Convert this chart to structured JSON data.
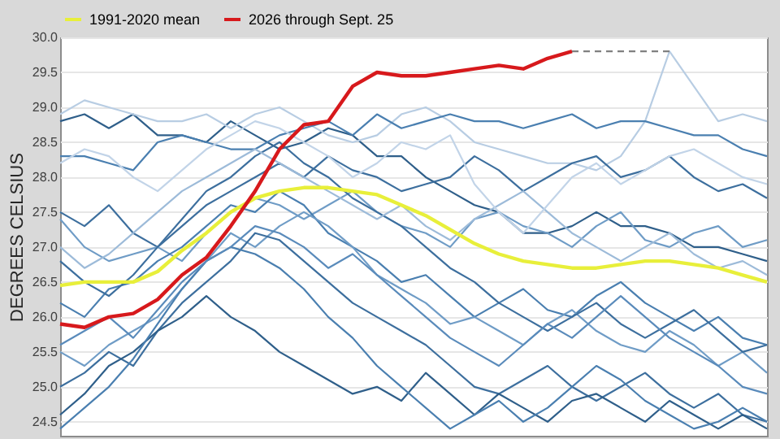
{
  "chart_data": {
    "type": "line",
    "ylabel": "DEGREES CELSIUS",
    "categories": [
      null,
      null,
      null,
      null,
      null,
      null,
      null,
      null,
      null,
      null,
      null,
      null,
      null,
      null,
      null,
      null,
      null,
      null,
      null,
      null,
      null,
      null,
      null,
      null,
      null,
      null,
      null,
      null,
      null,
      null
    ],
    "ylim": [
      24.3,
      30.0
    ],
    "yticks": [
      24.5,
      {
        "value": 25,
        "label": "25.0"
      },
      25.5,
      {
        "value": 26,
        "label": "26.0"
      },
      26.5,
      {
        "value": 27,
        "label": "27.0"
      },
      27.5,
      {
        "value": 28,
        "label": "28.0"
      },
      28.5,
      {
        "value": 29,
        "label": "29.0"
      },
      29.5,
      {
        "value": 30,
        "label": "30.0"
      }
    ],
    "grid": "y",
    "legend": "top",
    "tick_labels": "y",
    "line_style": "solid",
    "marker": "none",
    "series": [
      {
        "color": "#2f5f8a",
        "values": [
          28.8,
          28.9,
          28.7,
          28.9,
          28.6,
          28.6,
          28.5,
          28.8,
          28.6,
          28.4,
          28.5,
          28.7,
          28.6,
          28.3,
          28.3,
          28.0,
          27.8,
          27.6,
          27.5,
          27.2,
          27.2,
          27.3,
          27.5,
          27.3,
          27.3,
          27.2,
          27.0,
          27.0,
          26.9,
          26.8
        ]
      },
      {
        "color": "#b8cde3",
        "values": [
          28.9,
          29.1,
          29.0,
          28.9,
          28.8,
          28.8,
          28.9,
          28.7,
          28.9,
          29.0,
          28.8,
          28.6,
          28.5,
          28.6,
          28.9,
          29.0,
          28.8,
          28.5,
          28.4,
          28.3,
          28.2,
          28.2,
          28.1,
          28.3,
          28.8,
          29.8,
          29.3,
          28.8,
          28.9,
          28.8
        ]
      },
      {
        "color": "#4a7fb0",
        "values": [
          28.3,
          28.3,
          28.2,
          28.1,
          28.5,
          28.6,
          28.5,
          28.4,
          28.4,
          28.6,
          28.7,
          28.8,
          28.6,
          28.9,
          28.7,
          28.8,
          28.9,
          28.8,
          28.8,
          28.7,
          28.8,
          28.9,
          28.7,
          28.8,
          28.8,
          28.7,
          28.6,
          28.6,
          28.4,
          28.3
        ]
      },
      {
        "color": "#3d6f9e",
        "values": [
          27.5,
          27.3,
          27.6,
          27.2,
          27.0,
          27.3,
          27.6,
          27.8,
          28.0,
          28.2,
          28.0,
          28.3,
          28.1,
          28.0,
          27.8,
          27.9,
          28.0,
          28.3,
          28.1,
          27.8,
          28.0,
          28.2,
          28.3,
          28.0,
          28.1,
          28.3,
          28.0,
          27.8,
          27.9,
          27.7
        ]
      },
      {
        "color": "#6f9cc6",
        "values": [
          27.4,
          27.0,
          26.8,
          26.9,
          27.0,
          26.8,
          27.2,
          27.5,
          27.7,
          27.6,
          27.4,
          27.6,
          27.8,
          27.5,
          27.3,
          27.2,
          27.0,
          27.4,
          27.5,
          27.3,
          27.2,
          27.0,
          27.3,
          27.5,
          27.1,
          27.0,
          27.2,
          27.3,
          27.0,
          27.1
        ]
      },
      {
        "color": "#4a7fb0",
        "values": [
          26.2,
          26.0,
          26.4,
          26.5,
          26.8,
          27.0,
          27.3,
          27.6,
          27.5,
          27.8,
          27.6,
          27.2,
          27.0,
          26.8,
          26.5,
          26.6,
          26.3,
          26.0,
          26.2,
          26.4,
          26.1,
          26.0,
          26.3,
          26.5,
          26.2,
          26.0,
          25.8,
          26.0,
          25.7,
          25.6
        ]
      },
      {
        "color": "#6f9cc6",
        "values": [
          25.5,
          25.3,
          25.6,
          25.8,
          26.0,
          26.4,
          26.8,
          27.2,
          27.0,
          27.3,
          27.5,
          27.3,
          27.0,
          26.6,
          26.4,
          26.2,
          25.9,
          26.0,
          25.8,
          25.6,
          25.9,
          26.1,
          25.8,
          25.6,
          25.5,
          25.8,
          25.6,
          25.3,
          25.5,
          25.2
        ]
      },
      {
        "color": "#3d6f9e",
        "values": [
          25.0,
          25.2,
          25.5,
          25.3,
          25.8,
          26.2,
          26.5,
          26.8,
          27.2,
          27.1,
          26.8,
          26.5,
          26.2,
          26.0,
          25.8,
          25.6,
          25.3,
          25.0,
          24.9,
          25.1,
          25.3,
          25.0,
          24.8,
          25.0,
          25.2,
          24.9,
          24.7,
          24.9,
          24.6,
          24.5
        ]
      },
      {
        "color": "#2f5f8a",
        "values": [
          24.6,
          24.9,
          25.3,
          25.5,
          25.8,
          26.0,
          26.3,
          26.0,
          25.8,
          25.5,
          25.3,
          25.1,
          24.9,
          25.0,
          24.8,
          25.2,
          24.9,
          24.6,
          24.9,
          24.7,
          24.5,
          24.8,
          24.9,
          24.7,
          24.5,
          24.8,
          24.6,
          24.4,
          24.6,
          24.4
        ]
      },
      {
        "color": "#4a7fb0",
        "values": [
          24.4,
          24.7,
          25.0,
          25.4,
          25.9,
          26.4,
          26.8,
          27.0,
          26.9,
          26.7,
          26.4,
          26.0,
          25.7,
          25.3,
          25.0,
          24.7,
          24.4,
          24.6,
          24.8,
          24.5,
          24.7,
          25.0,
          25.3,
          25.1,
          24.8,
          24.6,
          24.4,
          24.5,
          24.7,
          24.5
        ]
      },
      {
        "color": "#3d6f9e",
        "values": [
          26.8,
          26.5,
          26.3,
          26.6,
          27.0,
          27.4,
          27.8,
          28.0,
          28.3,
          28.5,
          28.2,
          28.0,
          27.7,
          27.5,
          27.3,
          27.0,
          26.7,
          26.5,
          26.2,
          26.0,
          25.8,
          26.0,
          26.2,
          25.9,
          25.7,
          25.9,
          26.1,
          25.8,
          25.5,
          25.6
        ]
      },
      {
        "color": "#9dbbd9",
        "values": [
          27.0,
          26.7,
          26.9,
          27.2,
          27.5,
          27.8,
          28.0,
          28.2,
          28.4,
          28.2,
          28.0,
          27.8,
          27.6,
          27.4,
          27.6,
          27.3,
          27.1,
          27.4,
          27.6,
          27.8,
          27.5,
          27.2,
          27.0,
          26.8,
          27.0,
          27.2,
          26.9,
          26.7,
          26.8,
          26.6
        ]
      },
      {
        "color": "#5a8bbb",
        "values": [
          25.6,
          25.8,
          26.0,
          25.7,
          26.1,
          26.5,
          26.8,
          27.0,
          27.3,
          27.2,
          27.0,
          26.7,
          26.9,
          26.6,
          26.3,
          26.0,
          25.7,
          25.5,
          25.3,
          25.6,
          25.9,
          25.7,
          26.0,
          26.3,
          26.0,
          25.7,
          25.5,
          25.3,
          25.0,
          24.9
        ]
      },
      {
        "color": "#c2d4e8",
        "values": [
          28.2,
          28.4,
          28.3,
          28.0,
          27.8,
          28.1,
          28.4,
          28.6,
          28.8,
          28.7,
          28.5,
          28.3,
          28.0,
          28.2,
          28.5,
          28.4,
          28.6,
          27.9,
          27.5,
          27.2,
          27.6,
          28.0,
          28.2,
          27.9,
          28.1,
          28.3,
          28.4,
          28.2,
          28.0,
          27.9
        ]
      },
      {
        "color": "#808080",
        "line_style": "dashed",
        "values": [
          null,
          null,
          null,
          null,
          null,
          null,
          null,
          null,
          null,
          null,
          null,
          null,
          null,
          null,
          null,
          null,
          null,
          null,
          null,
          null,
          null,
          29.8,
          29.8,
          29.8,
          29.8,
          29.8,
          null,
          null,
          null,
          null
        ]
      },
      {
        "name": "1991-2020 mean",
        "color": "#e8ef3a",
        "values": [
          26.45,
          26.5,
          26.5,
          26.5,
          26.65,
          26.95,
          27.2,
          27.5,
          27.7,
          27.8,
          27.85,
          27.85,
          27.8,
          27.75,
          27.6,
          27.45,
          27.25,
          27.05,
          26.9,
          26.8,
          26.75,
          26.7,
          26.7,
          26.75,
          26.8,
          26.8,
          26.75,
          26.7,
          26.6,
          26.5
        ]
      },
      {
        "name": "2026 through Sept. 25",
        "color": "#d7191c",
        "values": [
          25.9,
          25.85,
          26.0,
          26.05,
          26.25,
          26.6,
          26.85,
          27.3,
          27.8,
          28.4,
          28.75,
          28.8,
          29.3,
          29.5,
          29.45,
          29.45,
          29.5,
          29.55,
          29.6,
          29.55,
          29.7,
          29.8,
          null,
          null,
          null,
          null,
          null,
          null,
          null,
          null
        ]
      }
    ]
  }
}
